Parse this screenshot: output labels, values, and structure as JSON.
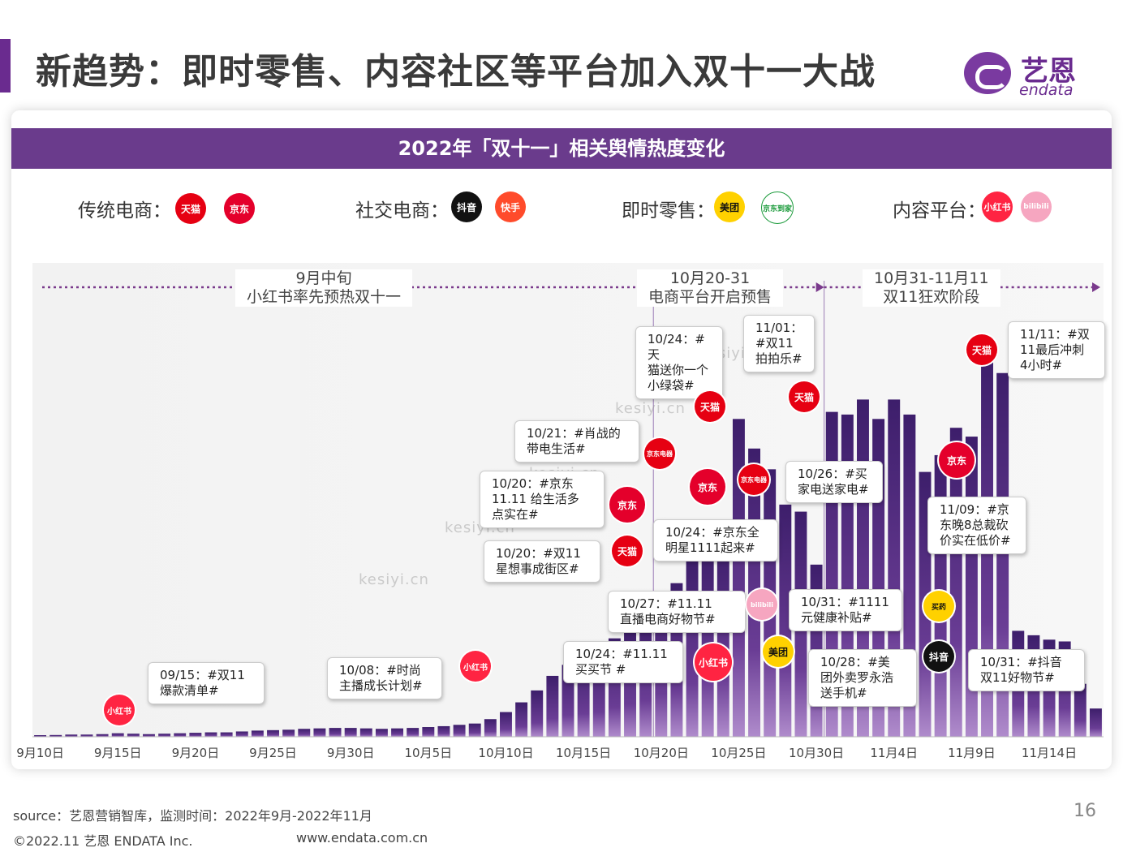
{
  "header": {
    "title": "新趋势：即时零售、内容社区等平台加入双十一大战",
    "logo_cn": "艺恩",
    "logo_en": "endata"
  },
  "card": {
    "heading": "2022年「双十一」相关舆情热度变化",
    "categories": [
      {
        "label": "传统电商：",
        "platforms": [
          "天猫",
          "京东"
        ]
      },
      {
        "label": "社交电商：",
        "platforms": [
          "抖音",
          "快手"
        ]
      },
      {
        "label": "即时零售：",
        "platforms": [
          "美团",
          "京东到家"
        ]
      },
      {
        "label": "内容平台：",
        "platforms": [
          "小红书",
          "bilibili"
        ]
      }
    ]
  },
  "phases": [
    {
      "line1": "9月中旬",
      "line2": "小红书率先预热双十一"
    },
    {
      "line1": "10月20-31",
      "line2": "电商平台开启预售"
    },
    {
      "line1": "10月31-11月11",
      "line2": "双11狂欢阶段"
    }
  ],
  "annotations": {
    "a1": "09/15：#双11\n爆款清单#",
    "a2": "10/08：#时尚\n主播成长计划#",
    "a3": "10/24：#11.11\n买买节 #",
    "a4": "10/20：#双11\n星想事成街区#",
    "a5": "10/20：#京东\n11.11 给生活多\n点实在#",
    "a6": "10/21：#肖战的\n带电生活#",
    "a7": "10/24：#天\n猫送你一个\n小绿袋#",
    "a8": "11/01：\n#双11\n拍拍乐#",
    "a9": "10/24：#京东全\n明星1111起来#",
    "a10": "10/27：#11.11\n直播电商好物节#",
    "a11": "10/26：#买\n家电送家电#",
    "a12": "10/31：#1111\n元健康补贴#",
    "a13": "10/28：#美\n团外卖罗永浩\n送手机#",
    "a14": "11/11：#双\n11最后冲刺\n4小时#",
    "a15": "11/09：#京\n东晚8总裁砍\n价实在低价#",
    "a16": "10/31：#抖音\n双11好物节#"
  },
  "badges": {
    "tmall": "天猫",
    "jd": "京东",
    "douyin": "抖音",
    "kuaishou": "快手",
    "meituan": "美团",
    "jddj": "京东到家",
    "xhs": "小红书",
    "bili": "bilibili",
    "jddq": "京东电器",
    "maiyao": "买药"
  },
  "watermarks": [
    "kesiyi.cn",
    "kesiyi.cn",
    "kesiyi.cn",
    "kesiyi.cn",
    "kesiyi.cn"
  ],
  "chart_data": {
    "type": "bar",
    "title": "2022年「双十一」相关舆情热度变化",
    "xlabel": "",
    "ylabel": "",
    "ylim": [
      0,
      100
    ],
    "categories": [
      "9/10",
      "9/11",
      "9/12",
      "9/13",
      "9/14",
      "9/15",
      "9/16",
      "9/17",
      "9/18",
      "9/19",
      "9/20",
      "9/21",
      "9/22",
      "9/23",
      "9/24",
      "9/25",
      "9/26",
      "9/27",
      "9/28",
      "9/29",
      "9/30",
      "10/1",
      "10/2",
      "10/3",
      "10/4",
      "10/5",
      "10/6",
      "10/7",
      "10/8",
      "10/9",
      "10/10",
      "10/11",
      "10/12",
      "10/13",
      "10/14",
      "10/15",
      "10/16",
      "10/17",
      "10/18",
      "10/19",
      "10/20",
      "10/21",
      "10/22",
      "10/23",
      "10/24",
      "10/25",
      "10/26",
      "10/27",
      "10/28",
      "10/29",
      "10/30",
      "10/31",
      "11/1",
      "11/2",
      "11/3",
      "11/4",
      "11/5",
      "11/6",
      "11/7",
      "11/8",
      "11/9",
      "11/10",
      "11/11",
      "11/12",
      "11/13",
      "11/14",
      "11/15",
      "11/16",
      "11/17"
    ],
    "tick_labels": [
      "9月10日",
      "9月15日",
      "9月20日",
      "9月25日",
      "9月30日",
      "10月5日",
      "10月10日",
      "10月15日",
      "10月20日",
      "10月25日",
      "10月30日",
      "11月4日",
      "11月9日",
      "11月14日"
    ],
    "values": [
      0.3,
      0.4,
      0.5,
      0.5,
      0.6,
      0.8,
      0.7,
      0.6,
      0.7,
      0.8,
      0.9,
      1.0,
      1.0,
      1.2,
      1.4,
      1.5,
      1.6,
      1.8,
      1.9,
      2.0,
      2.0,
      1.9,
      1.8,
      1.9,
      2.0,
      2.2,
      2.4,
      2.7,
      3.0,
      4.0,
      5.6,
      7.8,
      10.5,
      13.8,
      16.3,
      17.5,
      18.7,
      22.3,
      24.6,
      27.2,
      32.6,
      34.8,
      40.0,
      42.0,
      43.6,
      72.0,
      65.3,
      60.6,
      52.6,
      51.0,
      39.0,
      73.6,
      73.0,
      76.4,
      72.0,
      76.4,
      73.0,
      60.0,
      63.8,
      70.0,
      68.0,
      86.4,
      82.4,
      24.0,
      23.0,
      22.0,
      21.6,
      12.0,
      6.4
    ],
    "phase_boundaries": [
      "10/20",
      "10/31"
    ]
  }
}
